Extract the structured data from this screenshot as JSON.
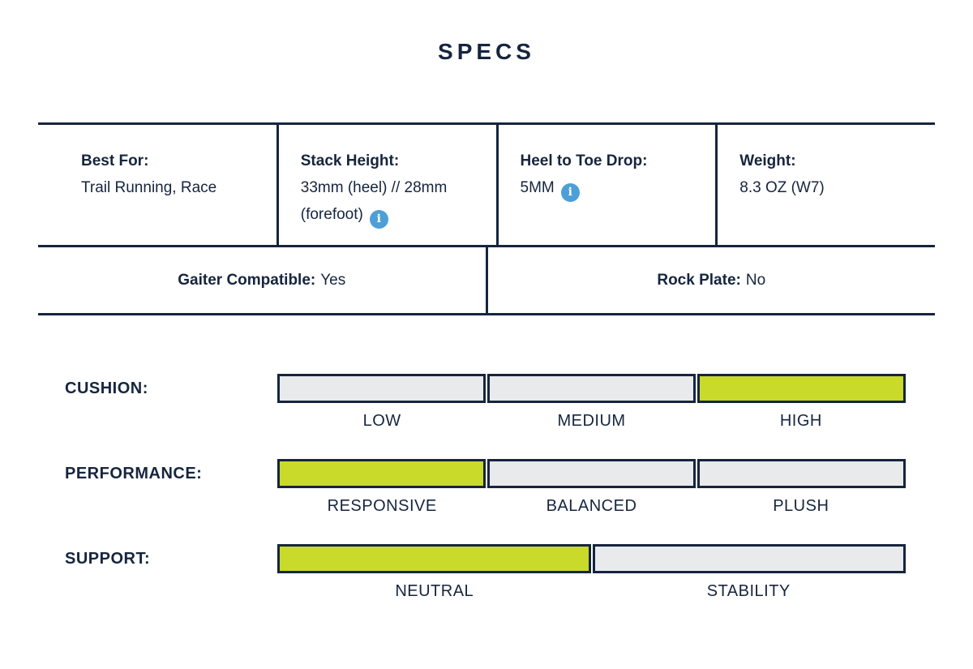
{
  "title": "SPECS",
  "colors": {
    "navy": "#16253E",
    "green": "#C9DA2B",
    "segment_gray": "#E8EAEC",
    "info_blue": "#4D9FD7"
  },
  "icons": {
    "info_glyph": "i"
  },
  "specs_table": {
    "cells": [
      {
        "label": "Best For:",
        "value": "Trail Running, Race",
        "has_info": false
      },
      {
        "label": "Stack Height:",
        "value": "33mm (heel) // 28mm (forefoot)",
        "has_info": true
      },
      {
        "label": "Heel to Toe Drop:",
        "value": "5MM",
        "has_info": true
      },
      {
        "label": "Weight:",
        "value": "8.3 OZ (W7)",
        "has_info": false
      }
    ],
    "row2": [
      {
        "label": "Gaiter Compatible:",
        "value": "Yes"
      },
      {
        "label": "Rock Plate:",
        "value": "No"
      }
    ]
  },
  "sliders": [
    {
      "name": "CUSHION:",
      "options": [
        "LOW",
        "MEDIUM",
        "HIGH"
      ],
      "active_index": 2
    },
    {
      "name": "PERFORMANCE:",
      "options": [
        "RESPONSIVE",
        "BALANCED",
        "PLUSH"
      ],
      "active_index": 0
    },
    {
      "name": "SUPPORT:",
      "options": [
        "NEUTRAL",
        "STABILITY"
      ],
      "active_index": 0
    }
  ]
}
